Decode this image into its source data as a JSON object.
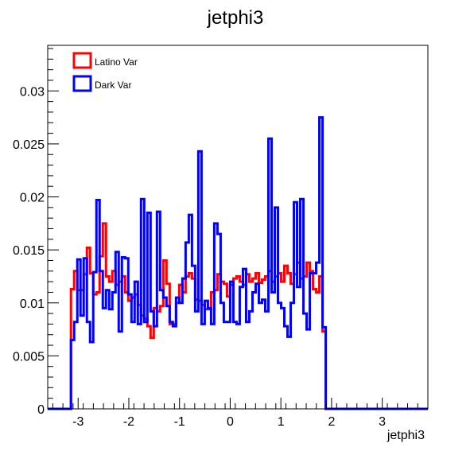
{
  "chart_data": {
    "type": "histogram",
    "title": "jetphi3",
    "xlabel": "jetphi3",
    "ylabel": "",
    "xlim": [
      -3.6,
      3.9
    ],
    "ylim": [
      0,
      0.0343
    ],
    "grid": false,
    "legend_position": "top-left",
    "x_ticks": [
      "-3",
      "-2",
      "-1",
      "0",
      "1",
      "2",
      "3"
    ],
    "y_ticks": [
      "0",
      "0.005",
      "0.01",
      "0.015",
      "0.02",
      "0.025",
      "0.03"
    ],
    "bin_start": -3.1416,
    "bin_width": 0.06283,
    "series": [
      {
        "name": "Latino Var",
        "color": "#ff0000",
        "values": [
          0.0113,
          0.013,
          0.0112,
          0.0112,
          0.0127,
          0.0152,
          0.0128,
          0.0108,
          0.011,
          0.0144,
          0.0175,
          0.0125,
          0.012,
          0.013,
          0.0117,
          0.012,
          0.0125,
          0.011,
          0.0102,
          0.0105,
          0.0108,
          0.0098,
          0.0088,
          0.0085,
          0.0078,
          0.0067,
          0.0095,
          0.0092,
          0.0097,
          0.014,
          0.0118,
          0.008,
          0.008,
          0.01,
          0.0117,
          0.011,
          0.0125,
          0.0128,
          0.0123,
          0.0103,
          0.0102,
          0.0098,
          0.0094,
          0.0094,
          0.011,
          0.0112,
          0.0127,
          0.012,
          0.0118,
          0.0106,
          0.0117,
          0.0123,
          0.0125,
          0.012,
          0.0117,
          0.0127,
          0.012,
          0.0123,
          0.0128,
          0.0119,
          0.0122,
          0.0125,
          0.013,
          0.012,
          0.0125,
          0.0128,
          0.012,
          0.0135,
          0.0128,
          0.0118,
          0.0127,
          0.0138,
          0.0123,
          0.0125,
          0.0138,
          0.013,
          0.0113,
          0.011,
          0.0125,
          0.0073
        ]
      },
      {
        "name": "Dark Var",
        "color": "#0000ff",
        "values": [
          0.0065,
          0.0082,
          0.0141,
          0.0088,
          0.0142,
          0.0082,
          0.0063,
          0.0129,
          0.0197,
          0.013,
          0.0095,
          0.0112,
          0.0094,
          0.011,
          0.0148,
          0.0073,
          0.0143,
          0.0142,
          0.0108,
          0.0082,
          0.012,
          0.008,
          0.0198,
          0.0082,
          0.0185,
          0.0092,
          0.0078,
          0.0186,
          0.0112,
          0.0105,
          0.0097,
          0.0082,
          0.0078,
          0.0105,
          0.01,
          0.0123,
          0.0157,
          0.0183,
          0.0135,
          0.0092,
          0.0243,
          0.008,
          0.0102,
          0.0095,
          0.008,
          0.0175,
          0.0165,
          0.01,
          0.0082,
          0.0082,
          0.012,
          0.0082,
          0.008,
          0.0115,
          0.0132,
          0.0082,
          0.0092,
          0.011,
          0.0118,
          0.01,
          0.0103,
          0.0092,
          0.0255,
          0.011,
          0.019,
          0.01,
          0.0095,
          0.0078,
          0.0068,
          0.01,
          0.0195,
          0.0115,
          0.0198,
          0.009,
          0.0075,
          0.0128,
          0.0128,
          0.0138,
          0.0275,
          0.0077
        ]
      }
    ]
  }
}
